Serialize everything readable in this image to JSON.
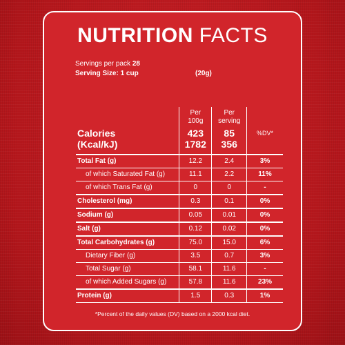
{
  "title": {
    "bold": "NUTRITION",
    "light": "FACTS"
  },
  "servings": {
    "per_pack_label": "Servings per pack",
    "per_pack_value": "28",
    "size_label": "Serving Size: 1 cup",
    "size_value": "(20g)"
  },
  "headers": {
    "per100_line1": "Per",
    "per100_line2": "100g",
    "perserv_line1": "Per",
    "perserv_line2": "serving",
    "dv": "%DV*"
  },
  "calories": {
    "label1": "Calories",
    "label2": "(Kcal/kJ)",
    "per100_kcal": "423",
    "per100_kj": "1782",
    "perserv_kcal": "85",
    "perserv_kj": "356"
  },
  "rows": [
    {
      "label": "Total Fat (g)",
      "per100": "12.2",
      "perserv": "2.4",
      "dv": "3%"
    },
    {
      "label": "of which Saturated Fat (g)",
      "per100": "11.1",
      "perserv": "2.2",
      "dv": "11%"
    },
    {
      "label": "of which Trans Fat (g)",
      "per100": "0",
      "perserv": "0",
      "dv": "-"
    },
    {
      "label": "Cholesterol (mg)",
      "per100": "0.3",
      "perserv": "0.1",
      "dv": "0%"
    },
    {
      "label": "Sodium (g)",
      "per100": "0.05",
      "perserv": "0.01",
      "dv": "0%"
    },
    {
      "label": "Salt (g)",
      "per100": "0.12",
      "perserv": "0.02",
      "dv": "0%"
    },
    {
      "label": "Total Carbohydrates (g)",
      "per100": "75.0",
      "perserv": "15.0",
      "dv": "6%"
    },
    {
      "label": "Dietary Fiber (g)",
      "per100": "3.5",
      "perserv": "0.7",
      "dv": "3%"
    },
    {
      "label": "Total Sugar (g)",
      "per100": "58.1",
      "perserv": "11.6",
      "dv": "-"
    },
    {
      "label": "of which Added Sugars (g)",
      "per100": "57.8",
      "perserv": "11.6",
      "dv": "23%"
    },
    {
      "label": "Protein (g)",
      "per100": "1.5",
      "perserv": "0.3",
      "dv": "1%"
    }
  ],
  "footnote": "*Percent of the daily values (DV) based on a 2000 kcal diet.",
  "colors": {
    "background": "#b8161b",
    "panel": "#d1252b",
    "text": "#ffffff"
  }
}
